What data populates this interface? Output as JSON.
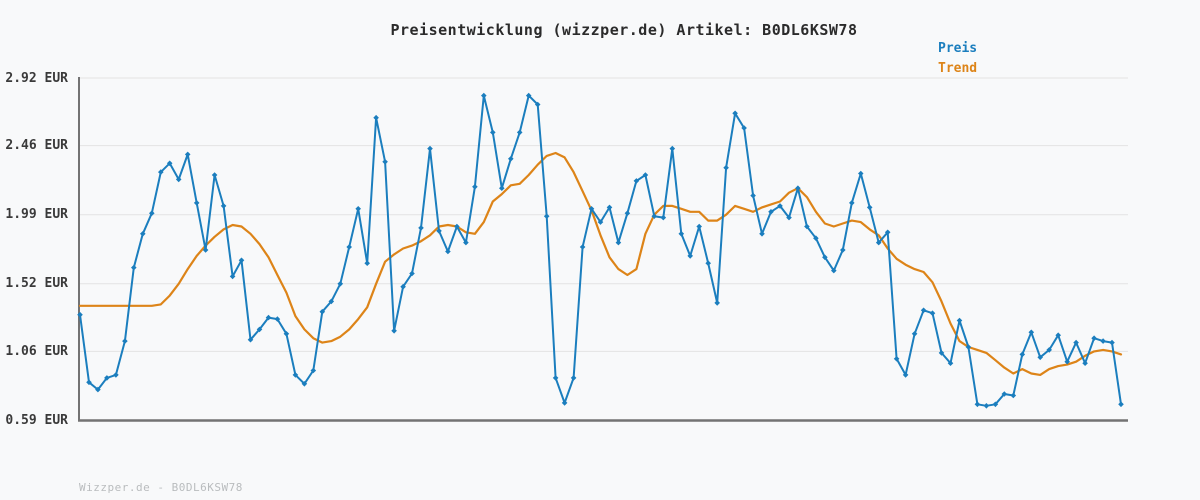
{
  "title": "Preisentwicklung (wizzper.de) Artikel: B0DL6KSW78",
  "legend": {
    "preis_label": "Preis",
    "trend_label": "Trend"
  },
  "footer": "Wizzper.de - B0DL6KSW78",
  "colors": {
    "preis": "#1b7ebe",
    "trend": "#dd8418",
    "grid": "#e3e3e3",
    "axis": "#737373",
    "background": "#f8f9fa"
  },
  "chart_data": {
    "type": "line",
    "title": "Preisentwicklung (wizzper.de) Artikel: B0DL6KSW78",
    "xlabel": "",
    "ylabel": "EUR",
    "x_axis": {
      "labels_visible": false,
      "points": 117
    },
    "ylim": [
      0.59,
      2.92
    ],
    "grid": true,
    "legend_position": "top-right",
    "yticks": [
      2.92,
      2.46,
      1.99,
      1.52,
      1.06,
      0.59
    ],
    "ytick_labels": [
      "2.92 EUR",
      "2.46 EUR",
      "1.99 EUR",
      "1.52 EUR",
      "1.06 EUR",
      "0.59 EUR"
    ],
    "series": [
      {
        "name": "Preis",
        "color": "#1b7ebe",
        "marker": "diamond",
        "stroke_width": 2,
        "values": [
          1.31,
          0.85,
          0.8,
          0.88,
          0.9,
          1.13,
          1.63,
          1.86,
          2.0,
          2.28,
          2.34,
          2.23,
          2.4,
          2.07,
          1.75,
          2.26,
          2.05,
          1.57,
          1.68,
          1.14,
          1.21,
          1.29,
          1.28,
          1.18,
          0.9,
          0.84,
          0.93,
          1.33,
          1.4,
          1.52,
          1.77,
          2.03,
          1.66,
          2.65,
          2.35,
          1.2,
          1.5,
          1.59,
          1.9,
          2.44,
          1.88,
          1.74,
          1.91,
          1.8,
          2.18,
          2.8,
          2.55,
          2.17,
          2.37,
          2.55,
          2.8,
          2.74,
          1.98,
          0.88,
          0.71,
          0.88,
          1.77,
          2.03,
          1.94,
          2.04,
          1.8,
          2.0,
          2.22,
          2.26,
          1.98,
          1.97,
          2.44,
          1.86,
          1.71,
          1.91,
          1.66,
          1.39,
          2.31,
          2.68,
          2.58,
          2.12,
          1.86,
          2.01,
          2.05,
          1.97,
          2.17,
          1.91,
          1.83,
          1.7,
          1.61,
          1.75,
          2.07,
          2.27,
          2.04,
          1.8,
          1.87,
          1.01,
          0.9,
          1.18,
          1.34,
          1.32,
          1.05,
          0.98,
          1.27,
          1.09,
          0.7,
          0.69,
          0.7,
          0.77,
          0.76,
          1.04,
          1.19,
          1.02,
          1.07,
          1.17,
          0.99,
          1.12,
          0.98,
          1.15,
          1.13,
          1.12,
          0.7
        ]
      },
      {
        "name": "Trend",
        "color": "#dd8418",
        "marker": "none",
        "stroke_width": 2.2,
        "values": [
          1.37,
          1.37,
          1.37,
          1.37,
          1.37,
          1.37,
          1.37,
          1.37,
          1.37,
          1.38,
          1.44,
          1.52,
          1.62,
          1.71,
          1.78,
          1.84,
          1.89,
          1.92,
          1.91,
          1.86,
          1.79,
          1.7,
          1.58,
          1.46,
          1.3,
          1.21,
          1.15,
          1.12,
          1.13,
          1.16,
          1.21,
          1.28,
          1.36,
          1.52,
          1.67,
          1.72,
          1.76,
          1.78,
          1.81,
          1.85,
          1.91,
          1.92,
          1.91,
          1.87,
          1.86,
          1.94,
          2.08,
          2.13,
          2.19,
          2.2,
          2.26,
          2.33,
          2.39,
          2.41,
          2.38,
          2.28,
          2.15,
          2.02,
          1.85,
          1.7,
          1.62,
          1.58,
          1.62,
          1.86,
          1.99,
          2.05,
          2.05,
          2.03,
          2.01,
          2.01,
          1.95,
          1.95,
          1.99,
          2.05,
          2.03,
          2.01,
          2.04,
          2.06,
          2.08,
          2.14,
          2.17,
          2.11,
          2.01,
          1.93,
          1.91,
          1.93,
          1.95,
          1.94,
          1.89,
          1.85,
          1.76,
          1.69,
          1.65,
          1.62,
          1.6,
          1.53,
          1.4,
          1.25,
          1.13,
          1.09,
          1.07,
          1.05,
          1.0,
          0.95,
          0.91,
          0.94,
          0.91,
          0.9,
          0.94,
          0.96,
          0.97,
          0.99,
          1.03,
          1.06,
          1.07,
          1.06,
          1.04
        ]
      }
    ]
  }
}
